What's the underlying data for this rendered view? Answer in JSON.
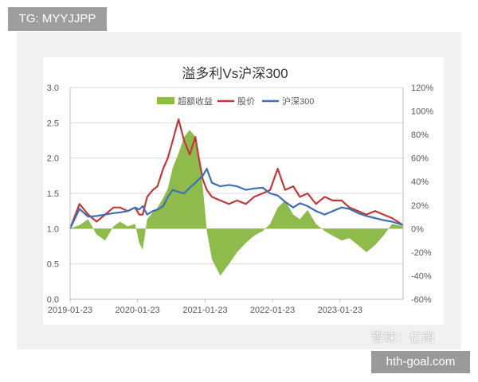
{
  "badges": {
    "top_left": "TG: MYYJJPP",
    "bottom_right": "hth-goal.com",
    "watermark": "雪球：亿南"
  },
  "colors": {
    "excess": "#8fbb4d",
    "stock": "#c0393b",
    "index": "#3f6fb5",
    "grid": "#d9d9d9",
    "axis_text": "#595959"
  },
  "chart_data": {
    "type": "line",
    "title": "溢多利Vs沪深300",
    "legend_position": "top",
    "grid": true,
    "x_tick_labels": [
      "2019-01-23",
      "2020-01-23",
      "2021-01-23",
      "2022-01-23",
      "2023-01-23"
    ],
    "x_ticks": [
      "2019-01-23",
      "2020-01-23",
      "2021-01-23",
      "2022-01-23",
      "2023-01-23"
    ],
    "x_range": [
      "2019-01-23",
      "2023-12-31"
    ],
    "y_left": {
      "ylim": [
        0,
        3.0
      ],
      "ticks": [
        "0.0",
        "0.5",
        "1.0",
        "1.5",
        "2.0",
        "2.5",
        "3.0"
      ]
    },
    "y_right": {
      "ylim": [
        -60,
        120
      ],
      "ticks": [
        "-60%",
        "-40%",
        "-20%",
        "0%",
        "20%",
        "40%",
        "60%",
        "80%",
        "100%",
        "120%"
      ]
    },
    "series": [
      {
        "name": "超额收益",
        "type": "area",
        "axis": "right",
        "unit": "%",
        "x": [
          "2019-01-23",
          "2019-03-15",
          "2019-05-01",
          "2019-06-15",
          "2019-08-01",
          "2019-09-15",
          "2019-10-20",
          "2019-12-01",
          "2020-01-10",
          "2020-02-01",
          "2020-02-20",
          "2020-03-15",
          "2020-04-15",
          "2020-05-10",
          "2020-06-10",
          "2020-07-05",
          "2020-08-01",
          "2020-09-01",
          "2020-10-01",
          "2020-11-01",
          "2020-12-01",
          "2020-12-20",
          "2021-01-10",
          "2021-02-01",
          "2021-03-01",
          "2021-04-15",
          "2021-06-01",
          "2021-07-15",
          "2021-09-01",
          "2021-10-15",
          "2021-12-01",
          "2022-01-10",
          "2022-02-20",
          "2022-04-01",
          "2022-05-15",
          "2022-06-20",
          "2022-08-01",
          "2022-09-15",
          "2022-11-01",
          "2022-12-15",
          "2023-02-01",
          "2023-03-15",
          "2023-05-01",
          "2023-06-15",
          "2023-08-01",
          "2023-09-15",
          "2023-11-01",
          "2023-12-31"
        ],
        "values": [
          0,
          3,
          8,
          -5,
          -10,
          2,
          6,
          2,
          4,
          -12,
          -18,
          8,
          14,
          18,
          26,
          34,
          52,
          64,
          78,
          84,
          78,
          58,
          36,
          -2,
          -26,
          -40,
          -30,
          -20,
          -12,
          -6,
          -2,
          4,
          18,
          24,
          12,
          8,
          16,
          4,
          -2,
          -6,
          -10,
          -8,
          -14,
          -20,
          -14,
          -6,
          4,
          2
        ]
      },
      {
        "name": "股价",
        "type": "line",
        "axis": "left",
        "x": [
          "2019-01-23",
          "2019-03-15",
          "2019-05-01",
          "2019-06-15",
          "2019-08-01",
          "2019-09-15",
          "2019-10-20",
          "2019-12-01",
          "2020-01-10",
          "2020-02-01",
          "2020-02-20",
          "2020-03-15",
          "2020-04-15",
          "2020-05-10",
          "2020-06-10",
          "2020-07-05",
          "2020-08-01",
          "2020-09-01",
          "2020-10-01",
          "2020-11-01",
          "2020-12-01",
          "2020-12-20",
          "2021-01-10",
          "2021-02-01",
          "2021-03-01",
          "2021-04-15",
          "2021-06-01",
          "2021-07-15",
          "2021-09-01",
          "2021-10-15",
          "2021-12-01",
          "2022-01-10",
          "2022-02-20",
          "2022-04-01",
          "2022-05-15",
          "2022-06-20",
          "2022-08-01",
          "2022-09-15",
          "2022-11-01",
          "2022-12-15",
          "2023-02-01",
          "2023-03-15",
          "2023-05-01",
          "2023-06-15",
          "2023-08-01",
          "2023-09-15",
          "2023-11-01",
          "2023-12-31"
        ],
        "values": [
          1.0,
          1.35,
          1.2,
          1.1,
          1.2,
          1.3,
          1.3,
          1.25,
          1.3,
          1.2,
          1.2,
          1.45,
          1.55,
          1.6,
          1.85,
          2.0,
          2.25,
          2.55,
          2.25,
          2.05,
          2.3,
          2.0,
          1.7,
          1.55,
          1.45,
          1.4,
          1.35,
          1.4,
          1.35,
          1.45,
          1.5,
          1.55,
          1.85,
          1.55,
          1.6,
          1.45,
          1.5,
          1.35,
          1.45,
          1.4,
          1.4,
          1.3,
          1.25,
          1.2,
          1.25,
          1.2,
          1.15,
          1.05
        ]
      },
      {
        "name": "沪深300",
        "type": "line",
        "axis": "left",
        "x": [
          "2019-01-23",
          "2019-03-15",
          "2019-05-01",
          "2019-06-15",
          "2019-08-01",
          "2019-09-15",
          "2019-10-20",
          "2019-12-01",
          "2020-01-10",
          "2020-02-01",
          "2020-02-20",
          "2020-03-15",
          "2020-04-15",
          "2020-05-10",
          "2020-06-10",
          "2020-07-05",
          "2020-08-01",
          "2020-09-01",
          "2020-10-01",
          "2020-11-01",
          "2020-12-01",
          "2020-12-20",
          "2021-01-10",
          "2021-02-01",
          "2021-03-01",
          "2021-04-15",
          "2021-06-01",
          "2021-07-15",
          "2021-09-01",
          "2021-10-15",
          "2021-12-01",
          "2022-01-10",
          "2022-02-20",
          "2022-04-01",
          "2022-05-15",
          "2022-06-20",
          "2022-08-01",
          "2022-09-15",
          "2022-11-01",
          "2022-12-15",
          "2023-02-01",
          "2023-03-15",
          "2023-05-01",
          "2023-06-15",
          "2023-08-01",
          "2023-09-15",
          "2023-11-01",
          "2023-12-31"
        ],
        "values": [
          1.0,
          1.28,
          1.17,
          1.18,
          1.2,
          1.22,
          1.23,
          1.25,
          1.3,
          1.27,
          1.32,
          1.2,
          1.25,
          1.27,
          1.32,
          1.45,
          1.55,
          1.52,
          1.5,
          1.58,
          1.65,
          1.7,
          1.75,
          1.85,
          1.65,
          1.6,
          1.62,
          1.6,
          1.55,
          1.57,
          1.58,
          1.5,
          1.47,
          1.38,
          1.3,
          1.36,
          1.32,
          1.25,
          1.2,
          1.25,
          1.3,
          1.28,
          1.22,
          1.18,
          1.15,
          1.12,
          1.1,
          1.05
        ]
      }
    ]
  }
}
